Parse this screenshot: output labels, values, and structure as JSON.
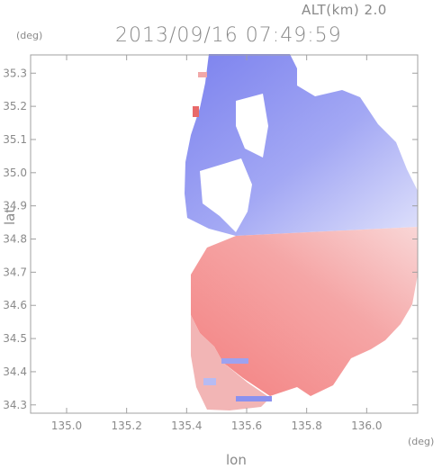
{
  "chart_data": {
    "type": "heatmap",
    "header": {
      "alt_label": "ALT(km)  2.0",
      "timestamp": "2013/09/16 07:49:59"
    },
    "xlabel": "lon",
    "ylabel": "lat",
    "x_unit": "(deg)",
    "y_unit": "(deg)",
    "xlim": [
      134.88,
      136.17
    ],
    "ylim": [
      34.275,
      35.355
    ],
    "x_ticks": [
      135.0,
      135.2,
      135.4,
      135.6,
      135.8,
      136.0
    ],
    "x_tick_labels": [
      "135.0",
      "135.2",
      "135.4",
      "135.6",
      "135.8",
      "136.0"
    ],
    "y_ticks": [
      34.3,
      34.4,
      34.5,
      34.6,
      34.7,
      34.8,
      34.9,
      35.0,
      35.1,
      35.2,
      35.3
    ],
    "y_tick_labels": [
      "34.3",
      "34.4",
      "34.5",
      "34.6",
      "34.7",
      "34.8",
      "34.9",
      "35.0",
      "35.1",
      "35.2",
      "35.3"
    ],
    "radar_center": {
      "lon": 135.52,
      "lat": 34.82
    },
    "colors": {
      "approaching": "#7f86ee",
      "receding": "#f48484",
      "axis": "#a0a0a0"
    }
  }
}
